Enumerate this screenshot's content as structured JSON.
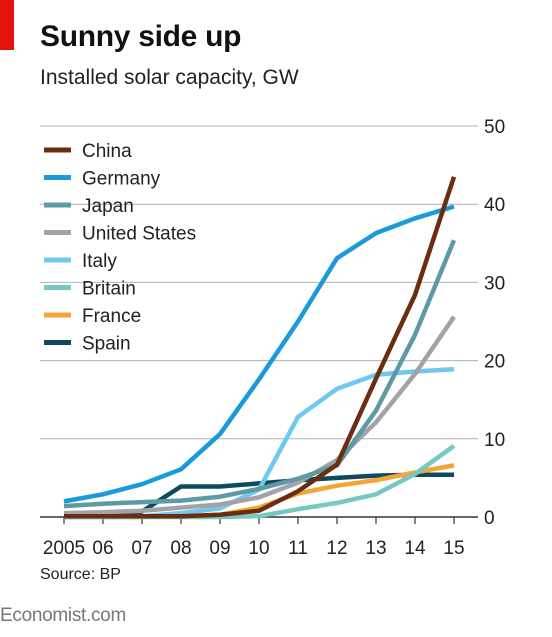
{
  "header": {
    "title": "Sunny side up",
    "subtitle": "Installed solar capacity, GW"
  },
  "footer": {
    "source": "Source: BP",
    "brand": "Economist.com"
  },
  "chart_data": {
    "type": "line",
    "title": "Sunny side up",
    "subtitle": "Installed solar capacity, GW",
    "xlabel": "",
    "ylabel": "",
    "x": [
      2005,
      2006,
      2007,
      2008,
      2009,
      2010,
      2011,
      2012,
      2013,
      2014,
      2015
    ],
    "x_tick_labels": [
      "2005",
      "06",
      "07",
      "08",
      "09",
      "10",
      "11",
      "12",
      "13",
      "14",
      "15"
    ],
    "ylim": [
      0,
      50
    ],
    "y_ticks": [
      0,
      10,
      20,
      30,
      40,
      50
    ],
    "y_axis_side": "right",
    "grid": true,
    "legend_placement": "top-left",
    "series": [
      {
        "name": "China",
        "color": "#6b2d0f",
        "values": [
          0.1,
          0.1,
          0.1,
          0.1,
          0.3,
          0.8,
          3.3,
          6.7,
          17.7,
          28.4,
          43.5
        ]
      },
      {
        "name": "Germany",
        "color": "#1a9bd7",
        "values": [
          2.0,
          2.9,
          4.2,
          6.1,
          10.6,
          17.6,
          25.0,
          33.1,
          36.3,
          38.2,
          39.7
        ]
      },
      {
        "name": "Japan",
        "color": "#5e9aa5",
        "values": [
          1.4,
          1.7,
          1.9,
          2.1,
          2.6,
          3.6,
          4.9,
          6.6,
          13.6,
          23.3,
          35.4
        ]
      },
      {
        "name": "United States",
        "color": "#a2a3a6",
        "values": [
          0.5,
          0.6,
          0.8,
          1.2,
          1.6,
          2.5,
          4.4,
          7.3,
          12.1,
          18.3,
          25.6
        ]
      },
      {
        "name": "Italy",
        "color": "#6fc8f0",
        "values": [
          0.0,
          0.1,
          0.1,
          0.5,
          1.1,
          3.5,
          12.8,
          16.4,
          18.2,
          18.6,
          18.9
        ]
      },
      {
        "name": "Britain",
        "color": "#76c8c2",
        "values": [
          0.0,
          0.0,
          0.0,
          0.0,
          0.0,
          0.1,
          1.0,
          1.8,
          2.9,
          5.5,
          9.1
        ]
      },
      {
        "name": "France",
        "color": "#f3a535",
        "values": [
          0.0,
          0.0,
          0.0,
          0.1,
          0.3,
          1.2,
          3.0,
          4.0,
          4.7,
          5.7,
          6.6
        ]
      },
      {
        "name": "Spain",
        "color": "#0f4a5c",
        "values": [
          0.0,
          0.1,
          0.7,
          3.9,
          3.9,
          4.3,
          4.7,
          5.0,
          5.3,
          5.4,
          5.4
        ]
      }
    ]
  }
}
